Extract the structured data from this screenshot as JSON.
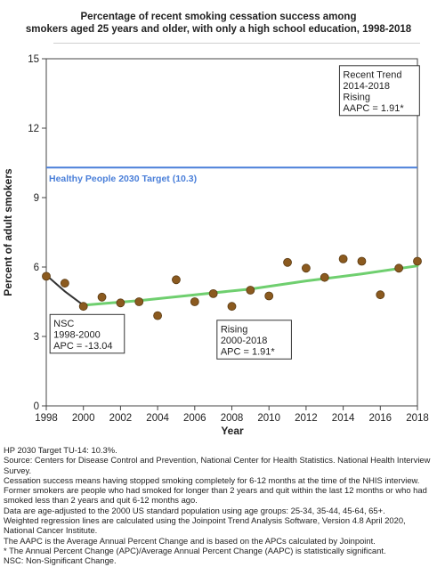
{
  "title_lines": [
    "Percentage of recent smoking cessation success among",
    "smokers aged 25 years and older, with only a high school education, 1998-2018"
  ],
  "chart_data": {
    "type": "scatter",
    "xlabel": "Year",
    "ylabel": "Percent of adult smokers",
    "xlim": [
      1998,
      2018
    ],
    "ylim": [
      0,
      15
    ],
    "x_ticks": [
      1998,
      2000,
      2002,
      2004,
      2006,
      2008,
      2010,
      2012,
      2014,
      2016,
      2018
    ],
    "y_ticks": [
      0,
      3,
      6,
      9,
      12,
      15
    ],
    "grid": false,
    "colors": {
      "points": "#8b5a1f",
      "points_edge": "#5a3a12",
      "trend_nsc": "#333333",
      "trend_rising": "#6fcf6f",
      "target": "#4a7fd9"
    },
    "points": [
      {
        "x": 1998,
        "y": 5.6
      },
      {
        "x": 1999,
        "y": 5.3
      },
      {
        "x": 2000,
        "y": 4.3
      },
      {
        "x": 2001,
        "y": 4.7
      },
      {
        "x": 2002,
        "y": 4.45
      },
      {
        "x": 2003,
        "y": 4.5
      },
      {
        "x": 2004,
        "y": 3.9
      },
      {
        "x": 2005,
        "y": 5.45
      },
      {
        "x": 2006,
        "y": 4.5
      },
      {
        "x": 2007,
        "y": 4.85
      },
      {
        "x": 2008,
        "y": 4.3
      },
      {
        "x": 2009,
        "y": 5.0
      },
      {
        "x": 2010,
        "y": 4.75
      },
      {
        "x": 2011,
        "y": 6.2
      },
      {
        "x": 2012,
        "y": 5.95
      },
      {
        "x": 2013,
        "y": 5.55
      },
      {
        "x": 2014,
        "y": 6.35
      },
      {
        "x": 2015,
        "y": 6.25
      },
      {
        "x": 2016,
        "y": 4.8
      },
      {
        "x": 2017,
        "y": 5.95
      },
      {
        "x": 2018,
        "y": 6.25
      }
    ],
    "trend_nsc": [
      {
        "x": 1998,
        "y": 5.65
      },
      {
        "x": 1999,
        "y": 4.95
      },
      {
        "x": 2000,
        "y": 4.35
      }
    ],
    "trend_rising": [
      {
        "x": 2000,
        "y": 4.35
      },
      {
        "x": 2003,
        "y": 4.55
      },
      {
        "x": 2006,
        "y": 4.8
      },
      {
        "x": 2009,
        "y": 5.05
      },
      {
        "x": 2012,
        "y": 5.4
      },
      {
        "x": 2015,
        "y": 5.7
      },
      {
        "x": 2018,
        "y": 6.05
      }
    ],
    "target": {
      "y": 10.3,
      "label": "Healthy People 2030 Target (10.3)"
    },
    "annotations": [
      {
        "lines": [
          "NSC",
          "1998-2000",
          "APC = -13.04"
        ],
        "anchor": {
          "x": 1998.2,
          "y": 3.95
        }
      },
      {
        "lines": [
          "Rising",
          "2000-2018",
          "APC =  1.91*"
        ],
        "anchor": {
          "x": 2007.2,
          "y": 3.7
        }
      },
      {
        "lines": [
          "Recent Trend",
          "2014-2018",
          "Rising",
          "AAPC =  1.91*"
        ],
        "anchor": {
          "x": 2013.8,
          "y": 14.7
        }
      }
    ]
  },
  "notes": [
    "HP 2030 Target TU-14: 10.3%.",
    "Source: Centers for Disease Control and Prevention, National Center for Health Statistics. National Health Interview Survey.",
    "Cessation success means having stopped smoking completely for 6-12 months at the time of the NHIS interview. Former smokers are people who had smoked for longer than 2 years and quit within the last 12 months or who had smoked less than 2 years and quit 6-12 months ago.",
    "Data are age-adjusted to the 2000 US standard population using age groups: 25-34, 35-44, 45-64, 65+.",
    "Weighted regression lines are calculated using the Joinpoint Trend Analysis Software, Version 4.8 April 2020, National Cancer Institute.",
    "The AAPC is the Average Annual Percent Change and is based on the APCs calculated by Joinpoint.",
    "* The Annual Percent Change (APC)/Average Annual Percent Change (AAPC) is statistically significant.",
    "NSC: Non-Significant Change."
  ]
}
